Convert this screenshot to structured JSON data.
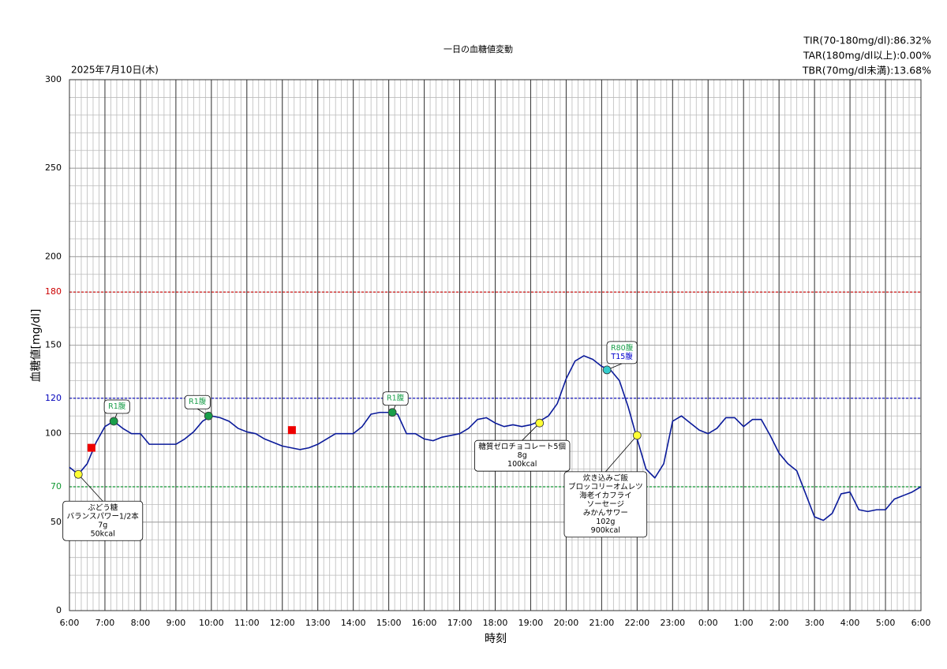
{
  "chart_data": {
    "type": "line",
    "title": "一日の血糖値変動",
    "date": "2025年7月10日(木)",
    "stats": [
      "TIR(70-180mg/dl):86.32%",
      "TAR(180mg/dl以上):0.00%",
      "TBR(70mg/dl未満):13.68%"
    ],
    "xlabel": "時刻",
    "ylabel": "血糖値[mg/dl]",
    "xlim": [
      6,
      30
    ],
    "ylim": [
      0,
      300
    ],
    "xticks": [
      {
        "value": 6,
        "label": "6:00"
      },
      {
        "value": 7,
        "label": "7:00"
      },
      {
        "value": 8,
        "label": "8:00"
      },
      {
        "value": 9,
        "label": "9:00"
      },
      {
        "value": 10,
        "label": "10:00"
      },
      {
        "value": 11,
        "label": "11:00"
      },
      {
        "value": 12,
        "label": "12:00"
      },
      {
        "value": 13,
        "label": "13:00"
      },
      {
        "value": 14,
        "label": "14:00"
      },
      {
        "value": 15,
        "label": "15:00"
      },
      {
        "value": 16,
        "label": "16:00"
      },
      {
        "value": 17,
        "label": "17:00"
      },
      {
        "value": 18,
        "label": "18:00"
      },
      {
        "value": 19,
        "label": "19:00"
      },
      {
        "value": 20,
        "label": "20:00"
      },
      {
        "value": 21,
        "label": "21:00"
      },
      {
        "value": 22,
        "label": "22:00"
      },
      {
        "value": 23,
        "label": "23:00"
      },
      {
        "value": 24,
        "label": "0:00"
      },
      {
        "value": 25,
        "label": "1:00"
      },
      {
        "value": 26,
        "label": "2:00"
      },
      {
        "value": 27,
        "label": "3:00"
      },
      {
        "value": 28,
        "label": "4:00"
      },
      {
        "value": 29,
        "label": "5:00"
      },
      {
        "value": 30,
        "label": "6:00"
      }
    ],
    "yticks": [
      0,
      50,
      70,
      100,
      120,
      150,
      180,
      200,
      250,
      300
    ],
    "grid": true,
    "thresholds": [
      {
        "value": 180,
        "color": "#cc0000"
      },
      {
        "value": 120,
        "color": "#0000bb"
      },
      {
        "value": 70,
        "color": "#119933"
      }
    ],
    "series": [
      {
        "color": "#0a1a9a",
        "x": [
          6,
          6.25,
          6.5,
          6.75,
          7,
          7.25,
          7.5,
          7.75,
          8,
          8.25,
          8.5,
          8.75,
          9,
          9.25,
          9.5,
          9.75,
          10,
          10.25,
          10.5,
          10.75,
          11,
          11.25,
          11.5,
          11.75,
          12,
          12.25,
          12.5,
          12.75,
          13,
          13.25,
          13.5,
          13.75,
          14,
          14.25,
          14.5,
          14.75,
          15,
          15.25,
          15.5,
          15.75,
          16,
          16.25,
          16.5,
          16.75,
          17,
          17.25,
          17.5,
          17.75,
          18,
          18.25,
          18.5,
          18.75,
          19,
          19.25,
          19.5,
          19.75,
          20,
          20.25,
          20.5,
          20.75,
          21,
          21.25,
          21.5,
          21.75,
          22,
          22.25,
          22.5,
          22.75,
          23,
          23.25,
          23.5,
          23.75,
          24,
          24.25,
          24.5,
          24.75,
          25,
          25.25,
          25.5,
          25.75,
          26,
          26.25,
          26.5,
          26.75,
          27,
          27.25,
          27.5,
          27.75,
          28,
          28.25,
          28.5,
          28.75,
          29,
          29.25,
          29.5,
          29.75,
          30
        ],
        "values": [
          81,
          77,
          83,
          95,
          104,
          107,
          103,
          100,
          100,
          94,
          94,
          94,
          94,
          97,
          101,
          107,
          110,
          109,
          107,
          103,
          101,
          100,
          97,
          95,
          93,
          92,
          91,
          92,
          94,
          97,
          100,
          100,
          100,
          104,
          111,
          112,
          112,
          111,
          100,
          100,
          97,
          96,
          98,
          99,
          100,
          103,
          108,
          109,
          106,
          104,
          105,
          104,
          105,
          107,
          110,
          117,
          131,
          141,
          144,
          142,
          138,
          136,
          130,
          115,
          97,
          80,
          75,
          83,
          107,
          110,
          106,
          102,
          100,
          103,
          109,
          109,
          104,
          108,
          108,
          99,
          89,
          83,
          79,
          66,
          53,
          51,
          55,
          66,
          67,
          57,
          56,
          57,
          57,
          63,
          65,
          67,
          70
        ]
      }
    ],
    "meal_markers": {
      "color": "#ffff33",
      "x": [
        6.25,
        19.25,
        22.0
      ],
      "values": [
        77,
        106,
        99
      ],
      "notes": [
        [
          "ぶどう糖",
          "バランスパワー1/2本",
          "7g",
          "50kcal"
        ],
        [
          "糖質ゼロチョコレート5個",
          "8g",
          "100kcal"
        ],
        [
          "炊き込みご飯",
          "ブロッコリーオムレツ",
          "海老イカフライ",
          "ソーセージ",
          "みかんサワー",
          "102g",
          "900kcal"
        ]
      ]
    },
    "insulin_markers": [
      {
        "x": 7.25,
        "value": 107,
        "color": "#1a9e4a",
        "notes": [
          {
            "text": "R1腹",
            "color": "#1a9e4a"
          }
        ]
      },
      {
        "x": 9.92,
        "value": 110,
        "color": "#1a9e4a",
        "notes": [
          {
            "text": "R1腹",
            "color": "#1a9e4a"
          }
        ]
      },
      {
        "x": 15.1,
        "value": 112,
        "color": "#1a9e4a",
        "notes": [
          {
            "text": "R1腹",
            "color": "#1a9e4a"
          }
        ]
      },
      {
        "x": 21.15,
        "value": 136,
        "color": "#33cccc",
        "notes": [
          {
            "text": "R80腹",
            "color": "#1a9e4a"
          },
          {
            "text": "T15腹",
            "color": "#0000cc"
          }
        ]
      }
    ],
    "fingerstick_markers": {
      "color": "#ee0000",
      "x": [
        6.62,
        12.27
      ],
      "values": [
        92,
        102
      ]
    }
  }
}
